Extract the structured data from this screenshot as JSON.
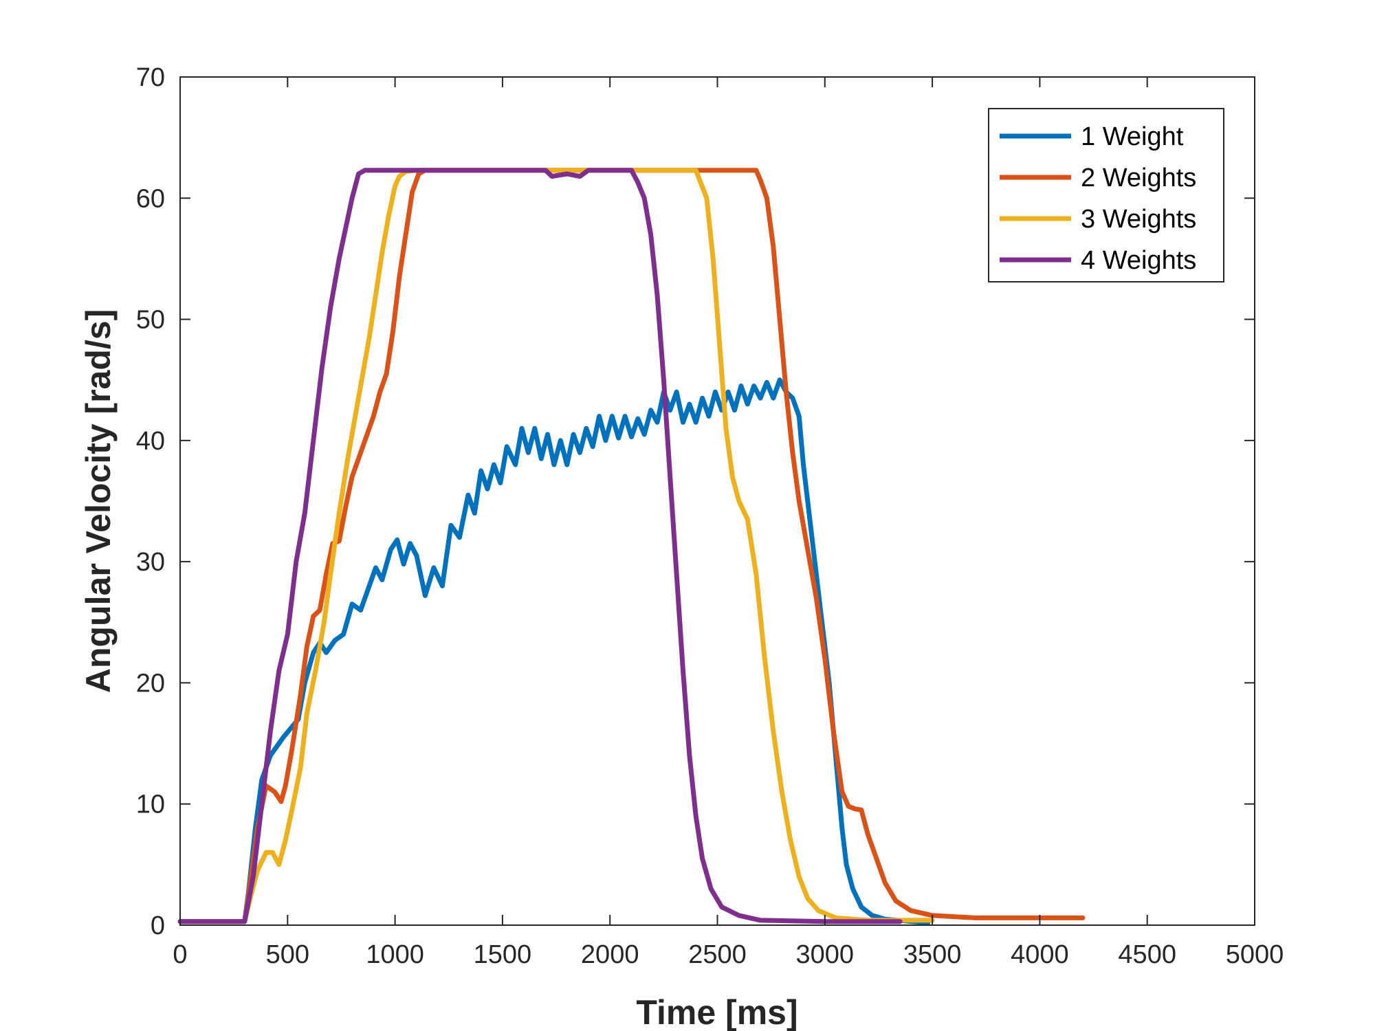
{
  "chart_data": {
    "type": "line",
    "xlabel": "Time [ms]",
    "ylabel": "Angular Velocity [rad/s]",
    "xlim": [
      0,
      5000
    ],
    "ylim": [
      0,
      70
    ],
    "xticks": [
      0,
      500,
      1000,
      1500,
      2000,
      2500,
      3000,
      3500,
      4000,
      4500,
      5000
    ],
    "yticks": [
      0,
      10,
      20,
      30,
      40,
      50,
      60,
      70
    ],
    "grid": false,
    "legend_position": "top-right",
    "series": [
      {
        "name": "1 Weight",
        "color": "#0072BD",
        "points": [
          [
            0,
            0.3
          ],
          [
            300,
            0.3
          ],
          [
            320,
            3
          ],
          [
            350,
            8
          ],
          [
            380,
            12
          ],
          [
            420,
            14
          ],
          [
            480,
            15.5
          ],
          [
            550,
            17
          ],
          [
            580,
            20
          ],
          [
            620,
            22.5
          ],
          [
            650,
            23.3
          ],
          [
            680,
            22.5
          ],
          [
            720,
            23.5
          ],
          [
            760,
            24
          ],
          [
            800,
            26.5
          ],
          [
            840,
            26
          ],
          [
            880,
            28
          ],
          [
            910,
            29.5
          ],
          [
            940,
            28.5
          ],
          [
            980,
            31
          ],
          [
            1010,
            31.8
          ],
          [
            1040,
            29.8
          ],
          [
            1070,
            31.5
          ],
          [
            1100,
            30.5
          ],
          [
            1140,
            27.2
          ],
          [
            1180,
            29.5
          ],
          [
            1220,
            28
          ],
          [
            1260,
            33
          ],
          [
            1300,
            32
          ],
          [
            1340,
            35.5
          ],
          [
            1370,
            34
          ],
          [
            1400,
            37.5
          ],
          [
            1430,
            36
          ],
          [
            1460,
            38
          ],
          [
            1490,
            36.5
          ],
          [
            1520,
            39.5
          ],
          [
            1560,
            38
          ],
          [
            1590,
            41
          ],
          [
            1620,
            39
          ],
          [
            1650,
            41
          ],
          [
            1680,
            38.5
          ],
          [
            1710,
            40.5
          ],
          [
            1740,
            38
          ],
          [
            1770,
            40
          ],
          [
            1800,
            38
          ],
          [
            1830,
            40.5
          ],
          [
            1860,
            39
          ],
          [
            1890,
            41
          ],
          [
            1920,
            39.5
          ],
          [
            1950,
            42
          ],
          [
            1980,
            40
          ],
          [
            2010,
            42
          ],
          [
            2040,
            40.2
          ],
          [
            2070,
            42
          ],
          [
            2100,
            40.3
          ],
          [
            2130,
            41.8
          ],
          [
            2160,
            40.5
          ],
          [
            2190,
            42.5
          ],
          [
            2220,
            41.5
          ],
          [
            2250,
            44
          ],
          [
            2280,
            42.5
          ],
          [
            2310,
            44
          ],
          [
            2340,
            41.5
          ],
          [
            2370,
            43
          ],
          [
            2400,
            41.5
          ],
          [
            2430,
            43.5
          ],
          [
            2460,
            42
          ],
          [
            2490,
            44
          ],
          [
            2520,
            42.5
          ],
          [
            2550,
            44
          ],
          [
            2580,
            42.5
          ],
          [
            2610,
            44.5
          ],
          [
            2640,
            43
          ],
          [
            2670,
            44.5
          ],
          [
            2700,
            43.5
          ],
          [
            2730,
            44.8
          ],
          [
            2760,
            43.5
          ],
          [
            2790,
            45
          ],
          [
            2820,
            44
          ],
          [
            2850,
            43.5
          ],
          [
            2880,
            42
          ],
          [
            2900,
            38
          ],
          [
            2920,
            35
          ],
          [
            2940,
            32
          ],
          [
            2960,
            29
          ],
          [
            2980,
            26
          ],
          [
            3000,
            23
          ],
          [
            3020,
            20
          ],
          [
            3040,
            16
          ],
          [
            3060,
            12
          ],
          [
            3080,
            8
          ],
          [
            3100,
            5
          ],
          [
            3130,
            3
          ],
          [
            3170,
            1.5
          ],
          [
            3220,
            0.8
          ],
          [
            3280,
            0.5
          ],
          [
            3400,
            0.3
          ],
          [
            3480,
            0.2
          ]
        ]
      },
      {
        "name": "2 Weights",
        "color": "#D95319",
        "points": [
          [
            0,
            0.3
          ],
          [
            300,
            0.3
          ],
          [
            330,
            4
          ],
          [
            360,
            8
          ],
          [
            400,
            11.5
          ],
          [
            440,
            11
          ],
          [
            470,
            10.2
          ],
          [
            490,
            11.5
          ],
          [
            520,
            14.5
          ],
          [
            560,
            19
          ],
          [
            590,
            23
          ],
          [
            620,
            25.5
          ],
          [
            650,
            26
          ],
          [
            680,
            29
          ],
          [
            710,
            31.5
          ],
          [
            740,
            31.7
          ],
          [
            770,
            34.5
          ],
          [
            800,
            37
          ],
          [
            840,
            39
          ],
          [
            870,
            40.5
          ],
          [
            900,
            42
          ],
          [
            930,
            44
          ],
          [
            960,
            45.5
          ],
          [
            990,
            49
          ],
          [
            1020,
            53.5
          ],
          [
            1050,
            57
          ],
          [
            1080,
            60.5
          ],
          [
            1110,
            62
          ],
          [
            1140,
            62.3
          ],
          [
            1200,
            62.3
          ],
          [
            1500,
            62.3
          ],
          [
            1800,
            62.3
          ],
          [
            2100,
            62.3
          ],
          [
            2400,
            62.3
          ],
          [
            2680,
            62.3
          ],
          [
            2700,
            61.5
          ],
          [
            2730,
            60
          ],
          [
            2760,
            56
          ],
          [
            2790,
            50
          ],
          [
            2820,
            44
          ],
          [
            2850,
            39
          ],
          [
            2880,
            35
          ],
          [
            2920,
            31
          ],
          [
            2960,
            27
          ],
          [
            3000,
            22
          ],
          [
            3040,
            16
          ],
          [
            3080,
            11
          ],
          [
            3110,
            9.8
          ],
          [
            3140,
            9.6
          ],
          [
            3170,
            9.5
          ],
          [
            3200,
            7.5
          ],
          [
            3240,
            5.5
          ],
          [
            3280,
            3.5
          ],
          [
            3330,
            2
          ],
          [
            3400,
            1.2
          ],
          [
            3500,
            0.8
          ],
          [
            3700,
            0.6
          ],
          [
            4200,
            0.6
          ]
        ]
      },
      {
        "name": "3 Weights",
        "color": "#EDB120",
        "points": [
          [
            0,
            0.3
          ],
          [
            300,
            0.3
          ],
          [
            330,
            2.5
          ],
          [
            360,
            4.5
          ],
          [
            400,
            6
          ],
          [
            430,
            6
          ],
          [
            460,
            5
          ],
          [
            490,
            7
          ],
          [
            520,
            9.5
          ],
          [
            560,
            13
          ],
          [
            590,
            17.5
          ],
          [
            630,
            21
          ],
          [
            670,
            25
          ],
          [
            700,
            29
          ],
          [
            740,
            34
          ],
          [
            780,
            38.5
          ],
          [
            820,
            42.5
          ],
          [
            850,
            45.5
          ],
          [
            880,
            48.5
          ],
          [
            910,
            52
          ],
          [
            940,
            55.5
          ],
          [
            970,
            58.5
          ],
          [
            1000,
            61
          ],
          [
            1020,
            61.8
          ],
          [
            1050,
            62.2
          ],
          [
            1100,
            62.3
          ],
          [
            1500,
            62.3
          ],
          [
            2000,
            62.3
          ],
          [
            2400,
            62.3
          ],
          [
            2450,
            60
          ],
          [
            2480,
            55
          ],
          [
            2510,
            48
          ],
          [
            2540,
            41
          ],
          [
            2570,
            37
          ],
          [
            2600,
            35
          ],
          [
            2640,
            33.5
          ],
          [
            2680,
            29
          ],
          [
            2720,
            22
          ],
          [
            2760,
            16
          ],
          [
            2800,
            11
          ],
          [
            2840,
            7
          ],
          [
            2880,
            4
          ],
          [
            2920,
            2.2
          ],
          [
            2970,
            1.2
          ],
          [
            3050,
            0.6
          ],
          [
            3200,
            0.4
          ],
          [
            3500,
            0.4
          ]
        ]
      },
      {
        "name": "4 Weights",
        "color": "#7E2F8E",
        "points": [
          [
            0,
            0.3
          ],
          [
            300,
            0.3
          ],
          [
            340,
            4
          ],
          [
            380,
            10
          ],
          [
            420,
            16
          ],
          [
            460,
            21
          ],
          [
            500,
            24
          ],
          [
            540,
            30
          ],
          [
            580,
            34
          ],
          [
            620,
            40
          ],
          [
            660,
            46
          ],
          [
            700,
            51
          ],
          [
            740,
            55
          ],
          [
            770,
            57.5
          ],
          [
            800,
            60
          ],
          [
            830,
            62
          ],
          [
            860,
            62.3
          ],
          [
            1200,
            62.3
          ],
          [
            1700,
            62.3
          ],
          [
            1730,
            61.8
          ],
          [
            1800,
            62
          ],
          [
            1860,
            61.8
          ],
          [
            1900,
            62.3
          ],
          [
            2100,
            62.3
          ],
          [
            2130,
            61.3
          ],
          [
            2160,
            60
          ],
          [
            2190,
            57
          ],
          [
            2220,
            52
          ],
          [
            2250,
            45
          ],
          [
            2280,
            37
          ],
          [
            2310,
            29
          ],
          [
            2340,
            21
          ],
          [
            2370,
            14
          ],
          [
            2400,
            9
          ],
          [
            2430,
            5.5
          ],
          [
            2470,
            3
          ],
          [
            2520,
            1.5
          ],
          [
            2600,
            0.8
          ],
          [
            2700,
            0.4
          ],
          [
            3000,
            0.3
          ],
          [
            3350,
            0.3
          ]
        ]
      }
    ]
  }
}
